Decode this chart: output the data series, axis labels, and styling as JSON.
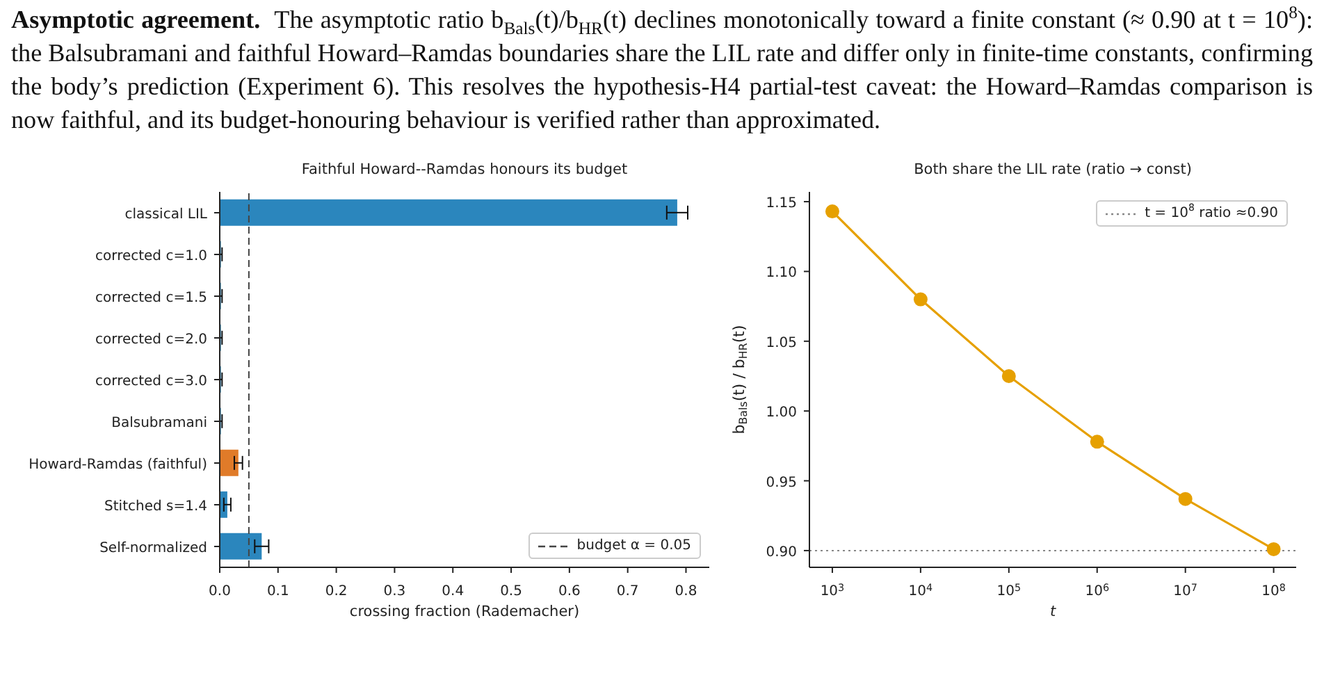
{
  "chart_data": [
    {
      "type": "bar",
      "orientation": "horizontal",
      "title": "Faithful Howard--Ramdas honours its budget",
      "xlabel": "crossing fraction (Rademacher)",
      "annotations": [
        "Asymptotic agreement.",
        "The asymptotic ratio b$_{Bals}$(t)/b$_{HR}$(t) declines monotonically toward a finite constant (≈ 0.90 at t = 10$^{8}$): the Balsubramani and faithful Howard–Ramdas boundaries share the LIL rate and differ only in finite-time constants, confirming the body’s prediction (Experiment 6). This resolves the hypothesis-H4 partial-test caveat: the Howard–Ramdas comparison is now faithful, and its budget-honouring behaviour is verified rather than approximated."
      ],
      "categories": [
        "classical LIL",
        "corrected c=1.0",
        "corrected c=1.5",
        "corrected c=2.0",
        "corrected c=3.0",
        "Balsubramani",
        "Howard-Ramdas (faithful)",
        "Stitched s=1.4",
        "Self-normalized"
      ],
      "values": [
        0.785,
        0.002,
        0.002,
        0.002,
        0.002,
        0.002,
        0.032,
        0.013,
        0.072
      ],
      "errors": [
        0.018,
        0.002,
        0.002,
        0.002,
        0.002,
        0.002,
        0.007,
        0.006,
        0.012
      ],
      "colors": [
        "#2b86bd",
        "#2b86bd",
        "#2b86bd",
        "#2b86bd",
        "#2b86bd",
        "#2b86bd",
        "#e07b29",
        "#2b86bd",
        "#2b86bd"
      ],
      "xlim": [
        0,
        0.84
      ],
      "xticks": [
        {
          "value": 0,
          "label": "0.0"
        },
        0.1,
        0.2,
        0.3,
        0.4,
        0.5,
        0.6,
        0.7,
        0.8
      ],
      "ref_lines": [
        {
          "axis": "x",
          "value": 0.05,
          "label": "budget α = 0.05",
          "color": "#444444",
          "line_style": "dashed"
        }
      ],
      "legend": "bottom right"
    },
    {
      "type": "line",
      "title": "Both share the LIL rate (ratio → const)",
      "xlabel": "t",
      "ylabel": "b$_{Bals}$(t) / b$_{HR}$(t)",
      "x": [
        1000,
        10000,
        100000,
        1000000,
        10000000,
        100000000
      ],
      "series": [
        {
          "color": "#e6a000",
          "values": [
            1.143,
            1.08,
            1.025,
            0.978,
            0.937,
            0.901
          ]
        }
      ],
      "log": "x",
      "marker": "circle",
      "line_style": "solid",
      "xlim": [
        550,
        180000000
      ],
      "xticks": [
        {
          "value": 1000,
          "label": "10$^{3}$"
        },
        {
          "value": 10000,
          "label": "10$^{4}$"
        },
        {
          "value": 100000,
          "label": "10$^{5}$"
        },
        {
          "value": 1000000,
          "label": "10$^{6}$"
        },
        {
          "value": 10000000,
          "label": "10$^{7}$"
        },
        {
          "value": 100000000,
          "label": "10$^{8}$"
        }
      ],
      "ylim": [
        0.888,
        1.157
      ],
      "yticks": [
        {
          "value": 0.9,
          "label": "0.90"
        },
        0.95,
        {
          "value": 1,
          "label": "1.00"
        },
        1.05,
        {
          "value": 1.1,
          "label": "1.10"
        },
        1.15
      ],
      "ref_lines": [
        {
          "axis": "y",
          "value": 0.9,
          "label": "t = 10$^{8}$ ratio ≈0.90",
          "color": "#888888",
          "line_style": "dotted"
        }
      ],
      "legend": "top right"
    }
  ]
}
